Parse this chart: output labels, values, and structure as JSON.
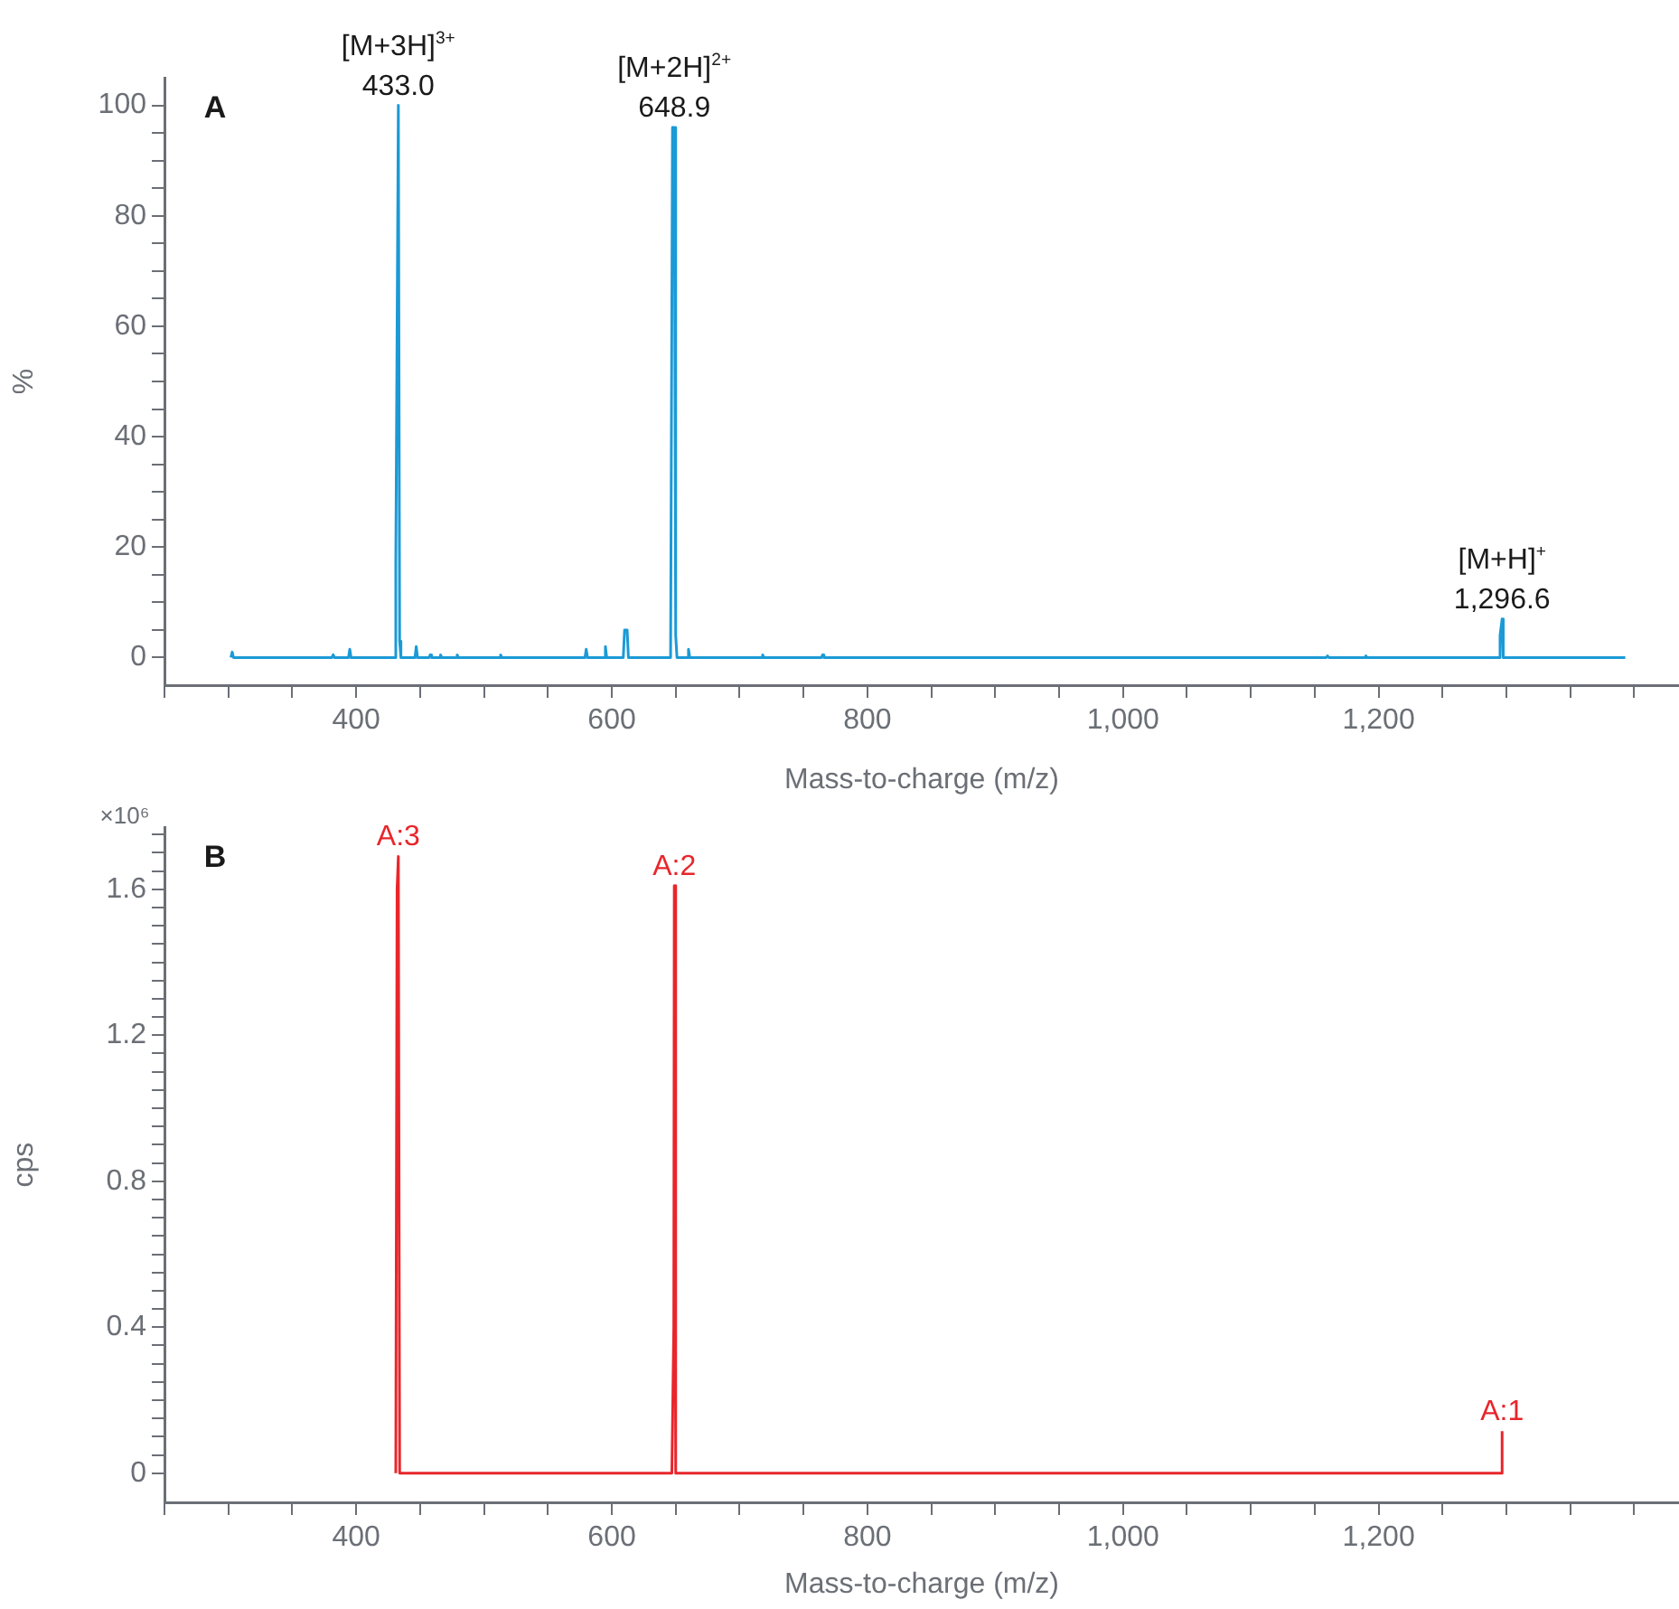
{
  "chart_data": [
    {
      "type": "line",
      "xlabel": "Mass-to-charge (m/z)",
      "ylabel": "%",
      "annotations": [
        "A",
        {
          "text": "[M+3H]$^{3+}$",
          "x": 433,
          "y": 100
        },
        {
          "text": "433.0",
          "x": 433,
          "y": 100
        },
        {
          "text": "[M+2H]$^{2+}$",
          "x": 648.9,
          "y": 96
        },
        {
          "text": "648.9",
          "x": 648.9,
          "y": 96
        },
        {
          "text": "[M+H]$^{+}$",
          "x": 1296.6,
          "y": 7
        },
        {
          "text": "1,296.6",
          "x": 1296.6,
          "y": 7
        }
      ],
      "series": [
        {
          "color": "#1b9ad6",
          "x": [
            302,
            303,
            304,
            381,
            382,
            383,
            394,
            395,
            396,
            430,
            431,
            433,
            434,
            435,
            446,
            447,
            448,
            457,
            458,
            459,
            465,
            466,
            467,
            478,
            479,
            480,
            512,
            513,
            514,
            579,
            580,
            581,
            594,
            595,
            596,
            609,
            610,
            612,
            613,
            646,
            647.5,
            648.9,
            650,
            651,
            659,
            660,
            661,
            717,
            718,
            719,
            764,
            765,
            766,
            1159,
            1160,
            1161,
            1189,
            1190,
            1191,
            1294,
            1295,
            1296.6,
            1297.5,
            1393
          ],
          "values": [
            0,
            1,
            0,
            0,
            0.5,
            0,
            0,
            1.5,
            0,
            0,
            17,
            100,
            3,
            0,
            0,
            2,
            0,
            0,
            0.5,
            0,
            0,
            0.5,
            0,
            0,
            0.5,
            0,
            0,
            0.5,
            0,
            0,
            1.5,
            0,
            0,
            2,
            0,
            0,
            5,
            5,
            0,
            0,
            96,
            96,
            4,
            0,
            0,
            1.5,
            0,
            0,
            0.5,
            0,
            0,
            0.5,
            0,
            0,
            0.3,
            0,
            0,
            0.3,
            0,
            0,
            4,
            7,
            0,
            0
          ]
        }
      ],
      "xlim": [
        250,
        1435
      ],
      "xticks": [
        {
          "value": 250,
          "label": null
        },
        {
          "value": 300,
          "label": null
        },
        {
          "value": 350,
          "label": null
        },
        400,
        {
          "value": 450,
          "label": null
        },
        {
          "value": 500,
          "label": null
        },
        {
          "value": 550,
          "label": null
        },
        600,
        {
          "value": 650,
          "label": null
        },
        {
          "value": 700,
          "label": null
        },
        {
          "value": 750,
          "label": null
        },
        800,
        {
          "value": 850,
          "label": null
        },
        {
          "value": 900,
          "label": null
        },
        {
          "value": 950,
          "label": null
        },
        {
          "value": 1000,
          "label": "1,000"
        },
        {
          "value": 1050,
          "label": null
        },
        {
          "value": 1100,
          "label": null
        },
        {
          "value": 1150,
          "label": null
        },
        {
          "value": 1200,
          "label": "1,200"
        },
        {
          "value": 1250,
          "label": null
        },
        {
          "value": 1300,
          "label": null
        },
        {
          "value": 1350,
          "label": null
        },
        {
          "value": 1400,
          "label": null
        }
      ],
      "ylim": [
        -5,
        105
      ],
      "yticks": [
        0,
        {
          "value": 5,
          "label": null
        },
        {
          "value": 10,
          "label": null
        },
        {
          "value": 15,
          "label": null
        },
        20,
        {
          "value": 25,
          "label": null
        },
        {
          "value": 30,
          "label": null
        },
        {
          "value": 35,
          "label": null
        },
        40,
        {
          "value": 45,
          "label": null
        },
        {
          "value": 50,
          "label": null
        },
        {
          "value": 55,
          "label": null
        },
        60,
        {
          "value": 65,
          "label": null
        },
        {
          "value": 70,
          "label": null
        },
        {
          "value": 75,
          "label": null
        },
        80,
        {
          "value": 85,
          "label": null
        },
        {
          "value": 90,
          "label": null
        },
        {
          "value": 95,
          "label": null
        },
        100
      ],
      "grid": false,
      "legend": false,
      "marker": "none",
      "line_style": "solid"
    },
    {
      "type": "line",
      "xlabel": "Mass-to-charge (m/z)",
      "ylabel": "cps",
      "annotations": [
        "B",
        "×10⁶",
        {
          "text": "A:3",
          "x": 433,
          "y": 1.69
        },
        {
          "text": "A:2",
          "x": 648.9,
          "y": 1.61
        },
        {
          "text": "A:1",
          "x": 1296.6,
          "y": 0.115
        }
      ],
      "series": [
        {
          "color": "#e8262b",
          "x": [
            431,
            432,
            433,
            434,
            647,
            648.5,
            648.9,
            650,
            1296.6,
            1296.6
          ],
          "values": [
            0,
            1.6,
            1.69,
            0,
            0,
            0.4,
            1.61,
            0,
            0,
            0.115
          ]
        }
      ],
      "xlim": [
        250,
        1435
      ],
      "xticks": [
        {
          "value": 250,
          "label": null
        },
        {
          "value": 300,
          "label": null
        },
        {
          "value": 350,
          "label": null
        },
        400,
        {
          "value": 450,
          "label": null
        },
        {
          "value": 500,
          "label": null
        },
        {
          "value": 550,
          "label": null
        },
        600,
        {
          "value": 650,
          "label": null
        },
        {
          "value": 700,
          "label": null
        },
        {
          "value": 750,
          "label": null
        },
        800,
        {
          "value": 850,
          "label": null
        },
        {
          "value": 900,
          "label": null
        },
        {
          "value": 950,
          "label": null
        },
        {
          "value": 1000,
          "label": "1,000"
        },
        {
          "value": 1050,
          "label": null
        },
        {
          "value": 1100,
          "label": null
        },
        {
          "value": 1150,
          "label": null
        },
        {
          "value": 1200,
          "label": "1,200"
        },
        {
          "value": 1250,
          "label": null
        },
        {
          "value": 1300,
          "label": null
        },
        {
          "value": 1350,
          "label": null
        },
        {
          "value": 1400,
          "label": null
        }
      ],
      "ylim": [
        -0.08,
        1.77
      ],
      "yticks": [
        0,
        {
          "value": 0.05,
          "label": null
        },
        {
          "value": 0.1,
          "label": null
        },
        {
          "value": 0.15,
          "label": null
        },
        {
          "value": 0.2,
          "label": null
        },
        {
          "value": 0.25,
          "label": null
        },
        {
          "value": 0.3,
          "label": null
        },
        {
          "value": 0.35,
          "label": null
        },
        0.4,
        {
          "value": 0.45,
          "label": null
        },
        {
          "value": 0.5,
          "label": null
        },
        {
          "value": 0.55,
          "label": null
        },
        {
          "value": 0.6,
          "label": null
        },
        {
          "value": 0.65,
          "label": null
        },
        {
          "value": 0.7,
          "label": null
        },
        {
          "value": 0.75,
          "label": null
        },
        0.8,
        {
          "value": 0.85,
          "label": null
        },
        {
          "value": 0.9,
          "label": null
        },
        {
          "value": 0.95,
          "label": null
        },
        {
          "value": 1,
          "label": null
        },
        {
          "value": 1.05,
          "label": null
        },
        {
          "value": 1.1,
          "label": null
        },
        {
          "value": 1.15,
          "label": null
        },
        1.2,
        {
          "value": 1.25,
          "label": null
        },
        {
          "value": 1.3,
          "label": null
        },
        {
          "value": 1.35,
          "label": null
        },
        {
          "value": 1.4,
          "label": null
        },
        {
          "value": 1.45,
          "label": null
        },
        {
          "value": 1.5,
          "label": null
        },
        {
          "value": 1.55,
          "label": null
        },
        1.6,
        {
          "value": 1.65,
          "label": null
        },
        {
          "value": 1.7,
          "label": null
        },
        {
          "value": 1.75,
          "label": null
        }
      ],
      "grid": false,
      "legend": false,
      "marker": "none",
      "line_style": "solid"
    }
  ]
}
